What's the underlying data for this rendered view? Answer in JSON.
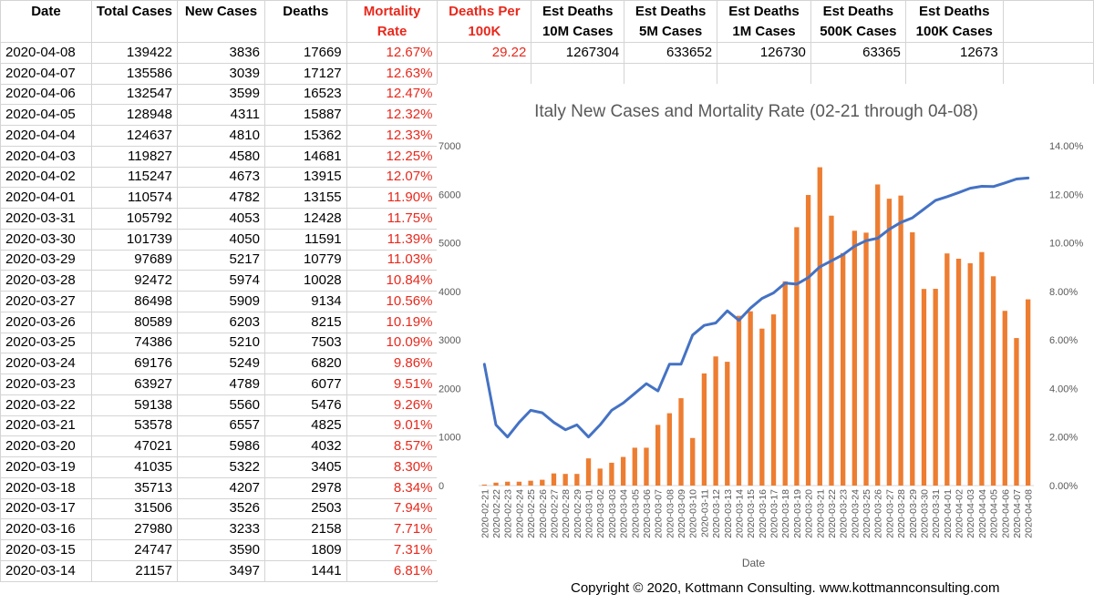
{
  "table": {
    "headers": [
      {
        "line1": "Date",
        "line2": "",
        "red": false
      },
      {
        "line1": "Total Cases",
        "line2": "",
        "red": false
      },
      {
        "line1": "New Cases",
        "line2": "",
        "red": false
      },
      {
        "line1": "Deaths",
        "line2": "",
        "red": false
      },
      {
        "line1": "Mortality",
        "line2": "Rate",
        "red": true
      },
      {
        "line1": "Deaths Per",
        "line2": "100K",
        "red": true
      },
      {
        "line1": "Est Deaths",
        "line2": "10M Cases",
        "red": false
      },
      {
        "line1": "Est Deaths",
        "line2": "5M Cases",
        "red": false
      },
      {
        "line1": "Est Deaths",
        "line2": "1M Cases",
        "red": false
      },
      {
        "line1": "Est Deaths",
        "line2": "500K Cases",
        "red": false
      },
      {
        "line1": "Est Deaths",
        "line2": "100K Cases",
        "red": false
      }
    ],
    "rows": [
      [
        "2020-04-08",
        "139422",
        "3836",
        "17669",
        "12.67%"
      ],
      [
        "2020-04-07",
        "135586",
        "3039",
        "17127",
        "12.63%"
      ],
      [
        "2020-04-06",
        "132547",
        "3599",
        "16523",
        "12.47%"
      ],
      [
        "2020-04-05",
        "128948",
        "4311",
        "15887",
        "12.32%"
      ],
      [
        "2020-04-04",
        "124637",
        "4810",
        "15362",
        "12.33%"
      ],
      [
        "2020-04-03",
        "119827",
        "4580",
        "14681",
        "12.25%"
      ],
      [
        "2020-04-02",
        "115247",
        "4673",
        "13915",
        "12.07%"
      ],
      [
        "2020-04-01",
        "110574",
        "4782",
        "13155",
        "11.90%"
      ],
      [
        "2020-03-31",
        "105792",
        "4053",
        "12428",
        "11.75%"
      ],
      [
        "2020-03-30",
        "101739",
        "4050",
        "11591",
        "11.39%"
      ],
      [
        "2020-03-29",
        "97689",
        "5217",
        "10779",
        "11.03%"
      ],
      [
        "2020-03-28",
        "92472",
        "5974",
        "10028",
        "10.84%"
      ],
      [
        "2020-03-27",
        "86498",
        "5909",
        "9134",
        "10.56%"
      ],
      [
        "2020-03-26",
        "80589",
        "6203",
        "8215",
        "10.19%"
      ],
      [
        "2020-03-25",
        "74386",
        "5210",
        "7503",
        "10.09%"
      ],
      [
        "2020-03-24",
        "69176",
        "5249",
        "6820",
        "9.86%"
      ],
      [
        "2020-03-23",
        "63927",
        "4789",
        "6077",
        "9.51%"
      ],
      [
        "2020-03-22",
        "59138",
        "5560",
        "5476",
        "9.26%"
      ],
      [
        "2020-03-21",
        "53578",
        "6557",
        "4825",
        "9.01%"
      ],
      [
        "2020-03-20",
        "47021",
        "5986",
        "4032",
        "8.57%"
      ],
      [
        "2020-03-19",
        "41035",
        "5322",
        "3405",
        "8.30%"
      ],
      [
        "2020-03-18",
        "35713",
        "4207",
        "2978",
        "8.34%"
      ],
      [
        "2020-03-17",
        "31506",
        "3526",
        "2503",
        "7.94%"
      ],
      [
        "2020-03-16",
        "27980",
        "3233",
        "2158",
        "7.71%"
      ],
      [
        "2020-03-15",
        "24747",
        "3590",
        "1809",
        "7.31%"
      ],
      [
        "2020-03-14",
        "21157",
        "3497",
        "1441",
        "6.81%"
      ]
    ],
    "first_row_extra": [
      "29.22",
      "1267304",
      "633652",
      "126730",
      "63365",
      "12673"
    ]
  },
  "copyright": "Copyright © 2020, Kottmann Consulting.     www.kottmannconsulting.com",
  "colors": {
    "bar": "#ed7d31",
    "line": "#4472c4",
    "red_text": "#e8281c",
    "grid": "#d9d9d9"
  },
  "chart_data": {
    "type": "bar",
    "title": "Italy New Cases and Mortality Rate (02-21 through 04-08)",
    "xlabel": "Date",
    "ylabel": "",
    "ylim": [
      0,
      7000
    ],
    "yticks": [
      0,
      1000,
      2000,
      3000,
      4000,
      5000,
      6000,
      7000
    ],
    "y2lim": [
      0,
      14
    ],
    "y2ticks": [
      "0.00%",
      "2.00%",
      "4.00%",
      "6.00%",
      "8.00%",
      "10.00%",
      "12.00%",
      "14.00%"
    ],
    "grid": false,
    "legend": "none",
    "categories": [
      "2020-02-21",
      "2020-02-22",
      "2020-02-23",
      "2020-02-24",
      "2020-02-25",
      "2020-02-26",
      "2020-02-27",
      "2020-02-28",
      "2020-02-29",
      "2020-03-01",
      "2020-03-02",
      "2020-03-03",
      "2020-03-04",
      "2020-03-05",
      "2020-03-06",
      "2020-03-07",
      "2020-03-08",
      "2020-03-09",
      "2020-03-10",
      "2020-03-11",
      "2020-03-12",
      "2020-03-13",
      "2020-03-14",
      "2020-03-15",
      "2020-03-16",
      "2020-03-17",
      "2020-03-18",
      "2020-03-19",
      "2020-03-20",
      "2020-03-21",
      "2020-03-22",
      "2020-03-23",
      "2020-03-24",
      "2020-03-25",
      "2020-03-26",
      "2020-03-27",
      "2020-03-28",
      "2020-03-29",
      "2020-03-30",
      "2020-03-31",
      "2020-04-01",
      "2020-04-02",
      "2020-04-03",
      "2020-04-04",
      "2020-04-05",
      "2020-04-06",
      "2020-04-07",
      "2020-04-08"
    ],
    "series": [
      {
        "kind": "bar",
        "axis": "left",
        "values": [
          20,
          60,
          80,
          80,
          100,
          120,
          250,
          240,
          240,
          560,
          350,
          470,
          590,
          780,
          780,
          1250,
          1490,
          1800,
          980,
          2310,
          2660,
          2550,
          3497,
          3590,
          3233,
          3526,
          4207,
          5322,
          5986,
          6557,
          5560,
          4789,
          5249,
          5210,
          6203,
          5909,
          5974,
          5217,
          4050,
          4053,
          4782,
          4673,
          4580,
          4810,
          4311,
          3599,
          3039,
          3836
        ]
      },
      {
        "kind": "line",
        "axis": "right",
        "values": [
          5.0,
          2.5,
          2.0,
          2.6,
          3.1,
          3.0,
          2.6,
          2.3,
          2.5,
          2.0,
          2.5,
          3.1,
          3.4,
          3.8,
          4.2,
          3.9,
          5.0,
          5.0,
          6.2,
          6.6,
          6.7,
          7.2,
          6.81,
          7.31,
          7.71,
          7.94,
          8.34,
          8.3,
          8.57,
          9.01,
          9.26,
          9.51,
          9.86,
          10.09,
          10.19,
          10.56,
          10.84,
          11.03,
          11.39,
          11.75,
          11.9,
          12.07,
          12.25,
          12.33,
          12.32,
          12.47,
          12.63,
          12.67
        ]
      }
    ]
  }
}
